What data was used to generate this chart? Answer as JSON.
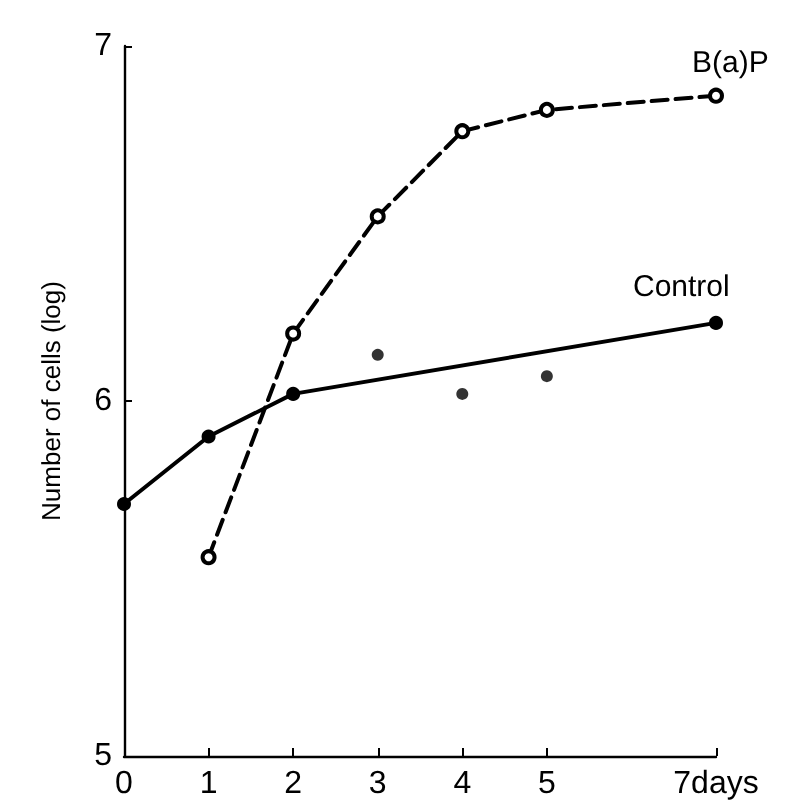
{
  "chart_data": {
    "type": "line",
    "ylabel": "Number of cells (log)",
    "xlim": [
      0,
      7
    ],
    "xticks": [
      0,
      1,
      2,
      3,
      4,
      5,
      {
        "value": 7,
        "label": "7days"
      }
    ],
    "ylim": [
      5,
      7
    ],
    "yticks": [
      5,
      6,
      7
    ],
    "grid": false,
    "legend": false,
    "marker": "circle",
    "series": [
      {
        "name": "B(a)P",
        "color": "#000000",
        "line_style": "dashed",
        "x": [
          1,
          2,
          3,
          4,
          5,
          7
        ],
        "values": [
          5.56,
          6.19,
          6.52,
          6.76,
          6.82,
          6.86
        ]
      },
      {
        "name": "Control",
        "color": "#000000",
        "line_style": "solid",
        "x": [
          0,
          1,
          2,
          7
        ],
        "values": [
          5.71,
          5.9,
          6.02,
          6.22
        ]
      },
      {
        "type": "scatter",
        "color": "#000000",
        "x": [
          3,
          4,
          5
        ],
        "values": [
          6.13,
          6.02,
          6.07
        ]
      }
    ]
  }
}
